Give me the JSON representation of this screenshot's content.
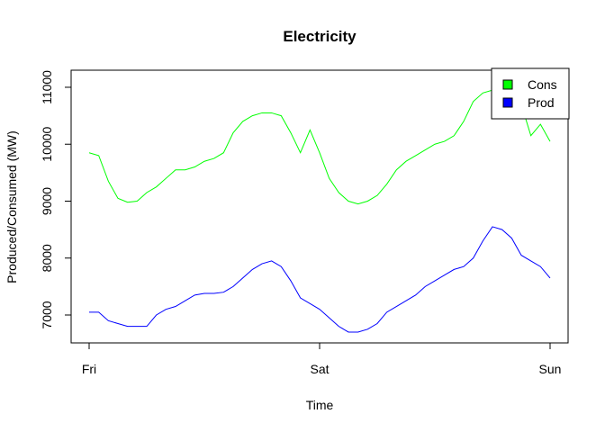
{
  "chart_data": {
    "type": "line",
    "title": "Electricity",
    "x_label": "Time",
    "y_label": "Produced/Consumed (MW)",
    "categories": [
      "Fri",
      null,
      null,
      null,
      null,
      null,
      null,
      null,
      null,
      null,
      null,
      null,
      null,
      null,
      null,
      null,
      null,
      null,
      null,
      null,
      null,
      null,
      null,
      null,
      "Sat",
      null,
      null,
      null,
      null,
      null,
      null,
      null,
      null,
      null,
      null,
      null,
      null,
      null,
      null,
      null,
      null,
      null,
      null,
      null,
      null,
      null,
      null,
      null,
      "Sun"
    ],
    "series": [
      {
        "name": "Cons",
        "color": "#00ff00",
        "values": [
          9850,
          9800,
          9350,
          9050,
          8980,
          9000,
          9150,
          9250,
          9400,
          9550,
          9550,
          9600,
          9700,
          9750,
          9850,
          10200,
          10400,
          10500,
          10550,
          10550,
          10500,
          10200,
          9850,
          10250,
          9850,
          9400,
          9150,
          9000,
          8950,
          9000,
          9100,
          9300,
          9550,
          9700,
          9800,
          9900,
          10000,
          10050,
          10150,
          10400,
          10750,
          10900,
          10950,
          10900,
          10850,
          10700,
          10150,
          10350,
          10050
        ]
      },
      {
        "name": "Prod",
        "color": "#0000ff",
        "values": [
          7050,
          7050,
          6900,
          6850,
          6800,
          6800,
          6800,
          7000,
          7100,
          7150,
          7250,
          7350,
          7380,
          7380,
          7400,
          7500,
          7650,
          7800,
          7900,
          7950,
          7850,
          7600,
          7300,
          7200,
          7100,
          6950,
          6800,
          6700,
          6700,
          6750,
          6850,
          7050,
          7150,
          7250,
          7350,
          7500,
          7600,
          7700,
          7800,
          7850,
          8000,
          8300,
          8550,
          8500,
          8350,
          8050,
          7950,
          7850,
          7650
        ]
      }
    ],
    "ylim": [
      6510,
      11300
    ],
    "yticks": [
      7000,
      8000,
      9000,
      10000,
      11000
    ],
    "legend": "topright"
  }
}
